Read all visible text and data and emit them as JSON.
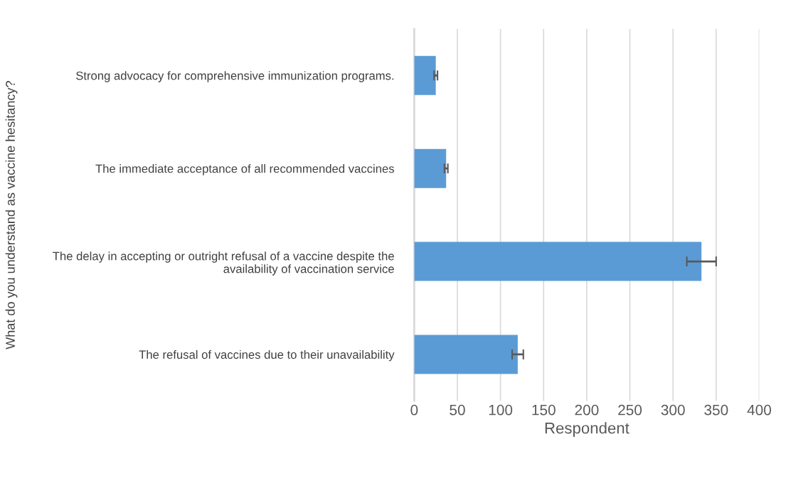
{
  "chart_data": {
    "type": "bar",
    "orientation": "horizontal",
    "categories": [
      "Strong advocacy for comprehensive immunization programs.",
      "The immediate acceptance of all recommended vaccines",
      "The delay in accepting or outright refusal of a vaccine despite the availability of vaccination service",
      "The refusal of vaccines due to their unavailability"
    ],
    "values": [
      25,
      37,
      333,
      120
    ],
    "errors": [
      2,
      2,
      17,
      6.5
    ],
    "color": "#5b9bd5",
    "xlim": [
      0,
      400
    ],
    "xticks": [
      0,
      50,
      100,
      150,
      200,
      250,
      300,
      350,
      400
    ],
    "xlabel": "Respondent",
    "ylabel": "What do you understand as vaccine hesitancy?",
    "grid": "x",
    "legend": false
  }
}
